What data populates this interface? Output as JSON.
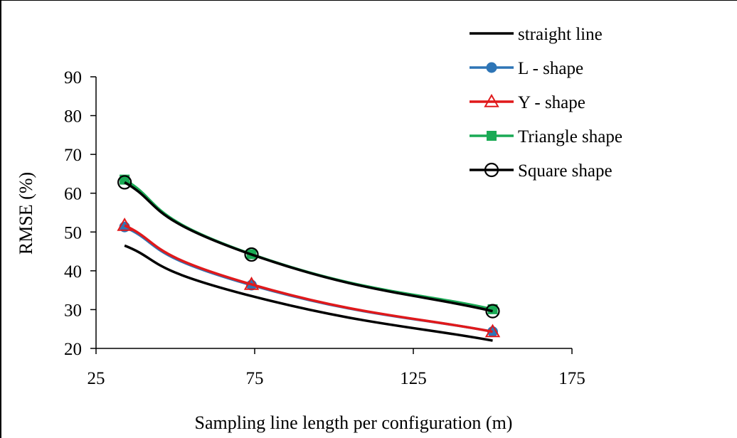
{
  "chart_data": {
    "type": "line",
    "xlabel": "Sampling line length per configuration (m)",
    "ylabel": "RMSE (%)",
    "xlim": [
      25,
      175
    ],
    "ylim": [
      20,
      90
    ],
    "x_ticks": [
      25,
      75,
      125,
      175
    ],
    "y_ticks": [
      20,
      30,
      40,
      50,
      60,
      70,
      80,
      90
    ],
    "grid": false,
    "legend_position": "top-right",
    "series": [
      {
        "name": "straight line",
        "color": "#000000",
        "marker": "none",
        "x": [
          34,
          74,
          150
        ],
        "y": [
          46.5,
          33.5,
          22
        ]
      },
      {
        "name": "L - shape",
        "color": "#2e75b6",
        "marker": "filled-circle",
        "x": [
          34,
          74,
          150
        ],
        "y": [
          51.3,
          36.3,
          24.3
        ]
      },
      {
        "name": "Y - shape",
        "color": "#e0191b",
        "marker": "open-triangle",
        "x": [
          34,
          74,
          150
        ],
        "y": [
          51.7,
          36.5,
          24.3
        ]
      },
      {
        "name": "Triangle shape",
        "color": "#1aaa55",
        "marker": "filled-square",
        "x": [
          34,
          74,
          150
        ],
        "y": [
          63.5,
          44.3,
          30.1
        ]
      },
      {
        "name": "Square shape",
        "color": "#000000",
        "marker": "open-circle",
        "x": [
          34,
          74,
          150
        ],
        "y": [
          62.8,
          44.2,
          29.6
        ]
      }
    ]
  }
}
